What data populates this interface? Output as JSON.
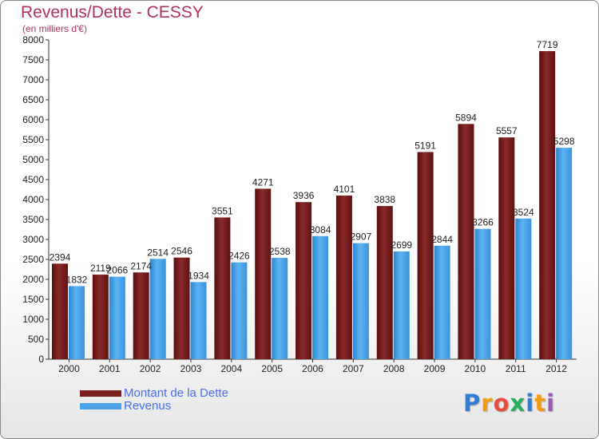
{
  "title": "Revenus/Dette - CESSY",
  "subtitle": "(en milliers d'€)",
  "colors": {
    "dette": "#7a1e1e",
    "revenus": "#4aa3e8",
    "title": "#b03060",
    "legend_text": "#4a6ef0"
  },
  "legend": [
    {
      "label": "Montant de la Dette",
      "color": "#7a1e1e"
    },
    {
      "label": "Revenus",
      "color": "#4aa3e8"
    }
  ],
  "logo": {
    "letters": [
      "P",
      "r",
      "o",
      "x",
      "i",
      "t",
      "i"
    ],
    "colors": [
      "#2f7fd6",
      "#f39c12",
      "#e74c3c",
      "#27ae60",
      "#2f7fd6",
      "#f39c12",
      "#9b59b6"
    ]
  },
  "chart_data": {
    "type": "bar",
    "categories": [
      "2000",
      "2001",
      "2002",
      "2003",
      "2004",
      "2005",
      "2006",
      "2007",
      "2008",
      "2009",
      "2010",
      "2011",
      "2012"
    ],
    "series": [
      {
        "name": "Montant de la Dette",
        "values": [
          2394,
          2119,
          2174,
          2546,
          3551,
          4271,
          3936,
          4101,
          3838,
          5191,
          5894,
          5557,
          7719
        ]
      },
      {
        "name": "Revenus",
        "values": [
          1832,
          2066,
          2514,
          1934,
          2426,
          2538,
          3084,
          2907,
          2699,
          2844,
          3266,
          3524,
          5298
        ]
      }
    ],
    "title": "Revenus/Dette - CESSY",
    "subtitle": "(en milliers d'€)",
    "ylim": [
      0,
      8000
    ],
    "yticks": [
      0,
      500,
      1000,
      1500,
      2000,
      2500,
      3000,
      3500,
      4000,
      4500,
      5000,
      5500,
      6000,
      6500,
      7000,
      7500,
      8000
    ],
    "grid": false,
    "legend_position": "bottom-left"
  }
}
